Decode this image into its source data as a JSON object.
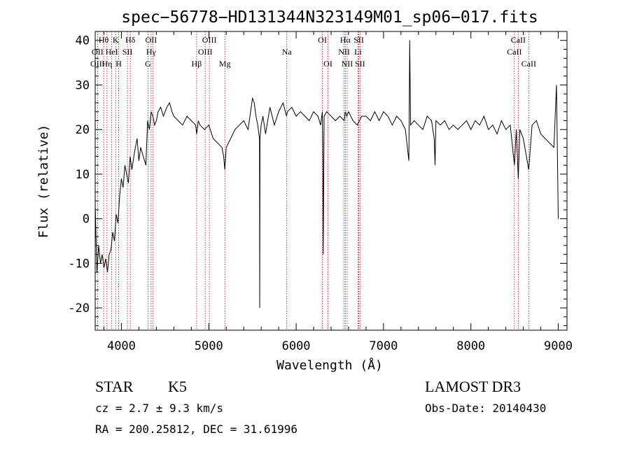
{
  "chart_data": {
    "type": "line",
    "title": "spec−56778−HD131344N323149M01_sp06−017.fits",
    "xlabel": "Wavelength (Å)",
    "ylabel": "Flux (relative)",
    "xlim": [
      3700,
      9100
    ],
    "ylim": [
      -25,
      42
    ],
    "x_ticks": [
      4000,
      5000,
      6000,
      7000,
      8000,
      9000
    ],
    "y_ticks": [
      -20,
      -10,
      0,
      10,
      20,
      30,
      40
    ],
    "grid": false,
    "legend": "none",
    "series": [
      {
        "x": [
          3700,
          3720,
          3740,
          3760,
          3780,
          3800,
          3820,
          3840,
          3860,
          3880,
          3900,
          3920,
          3940,
          3960,
          3980,
          4000,
          4020,
          4040,
          4060,
          4080,
          4100,
          4120,
          4150,
          4180,
          4200,
          4220,
          4250,
          4280,
          4300,
          4320,
          4340,
          4360,
          4380,
          4400,
          4420,
          4450,
          4480,
          4500,
          4520,
          4550,
          4580,
          4600,
          4650,
          4700,
          4750,
          4800,
          4850,
          4861,
          4880,
          4900,
          4950,
          5000,
          5050,
          5100,
          5150,
          5170,
          5184,
          5200,
          5250,
          5300,
          5350,
          5400,
          5450,
          5500,
          5520,
          5540,
          5560,
          5580,
          5583,
          5586,
          5600,
          5620,
          5650,
          5700,
          5750,
          5800,
          5850,
          5890,
          5900,
          5950,
          6000,
          6050,
          6100,
          6150,
          6200,
          6250,
          6280,
          6300,
          6305,
          6310,
          6320,
          6350,
          6400,
          6450,
          6500,
          6550,
          6563,
          6580,
          6600,
          6650,
          6700,
          6750,
          6800,
          6850,
          6900,
          6950,
          7000,
          7050,
          7100,
          7150,
          7200,
          7250,
          7290,
          7300,
          7310,
          7350,
          7400,
          7450,
          7500,
          7550,
          7580,
          7590,
          7600,
          7650,
          7700,
          7750,
          7800,
          7850,
          7900,
          7950,
          8000,
          8050,
          8100,
          8150,
          8200,
          8250,
          8300,
          8350,
          8400,
          8450,
          8498,
          8520,
          8542,
          8560,
          8600,
          8662,
          8700,
          8750,
          8800,
          8850,
          8900,
          8950,
          8980,
          9000
        ],
        "y": [
          3,
          -12,
          -6,
          -10,
          -8,
          -11,
          -9,
          -12,
          -8,
          -7,
          -3,
          -5,
          1,
          -1,
          5,
          9,
          7,
          12,
          10,
          8,
          14,
          11,
          15,
          18,
          13,
          16,
          14,
          12,
          22,
          20,
          24,
          23,
          21,
          22,
          24,
          25,
          23,
          24,
          25,
          26,
          24,
          23,
          22,
          21,
          23,
          22,
          21,
          19,
          22,
          21,
          20,
          21,
          18,
          17,
          16,
          14,
          11,
          16,
          18,
          20,
          21,
          22,
          20,
          27,
          26,
          23,
          21,
          18,
          -20,
          18,
          21,
          23,
          19,
          25,
          21,
          24,
          26,
          23,
          24,
          25,
          23,
          24,
          23,
          22,
          24,
          23,
          21,
          24,
          15,
          -8,
          23,
          24,
          23,
          22,
          23,
          22,
          24,
          23,
          24,
          22,
          21,
          23,
          23,
          22,
          24,
          22,
          24,
          23,
          21,
          23,
          22,
          20,
          13,
          40,
          21,
          22,
          21,
          20,
          23,
          22,
          18,
          12,
          22,
          21,
          22,
          20,
          21,
          20,
          21,
          22,
          20,
          22,
          21,
          23,
          20,
          21,
          19,
          22,
          20,
          21,
          12,
          20,
          9,
          20,
          18,
          11,
          21,
          22,
          19,
          18,
          17,
          16,
          30,
          0
        ]
      }
    ],
    "line_labels": [
      {
        "text": "Hθ",
        "x": 3797,
        "row": 1
      },
      {
        "text": "K",
        "x": 3934,
        "row": 1
      },
      {
        "text": "Hδ",
        "x": 4102,
        "row": 1
      },
      {
        "text": "OII",
        "x": 4340,
        "row": 1
      },
      {
        "text": "OIII",
        "x": 5007,
        "row": 1
      },
      {
        "text": "OI",
        "x": 6300,
        "row": 1
      },
      {
        "text": "Hα",
        "x": 6563,
        "row": 1
      },
      {
        "text": "SII",
        "x": 6717,
        "row": 1
      },
      {
        "text": "CaII",
        "x": 8542,
        "row": 1
      },
      {
        "text": "OII",
        "x": 3727,
        "row": 2
      },
      {
        "text": "HeI",
        "x": 3889,
        "row": 2
      },
      {
        "text": "SII",
        "x": 4069,
        "row": 2
      },
      {
        "text": "Hγ",
        "x": 4340,
        "row": 2
      },
      {
        "text": "OIII",
        "x": 4959,
        "row": 2
      },
      {
        "text": "Na",
        "x": 5893,
        "row": 2
      },
      {
        "text": "NII",
        "x": 6549,
        "row": 2
      },
      {
        "text": "Li",
        "x": 6708,
        "row": 2
      },
      {
        "text": "CaII",
        "x": 8498,
        "row": 2
      },
      {
        "text": "OIII",
        "x": 3727,
        "row": 3
      },
      {
        "text": "Hη",
        "x": 3835,
        "row": 3
      },
      {
        "text": "H",
        "x": 3969,
        "row": 3
      },
      {
        "text": "G",
        "x": 4304,
        "row": 3
      },
      {
        "text": "Hβ",
        "x": 4861,
        "row": 3
      },
      {
        "text": "Mg",
        "x": 5184,
        "row": 3
      },
      {
        "text": "OI",
        "x": 6364,
        "row": 3
      },
      {
        "text": "NII",
        "x": 6584,
        "row": 3
      },
      {
        "text": "SII",
        "x": 6731,
        "row": 3
      },
      {
        "text": "CaII",
        "x": 8662,
        "row": 3
      }
    ],
    "line_markers": [
      3727,
      3797,
      3835,
      3889,
      3934,
      3969,
      4069,
      4102,
      4304,
      4340,
      4363,
      4861,
      4959,
      5007,
      5184,
      5893,
      6300,
      6364,
      6549,
      6563,
      6584,
      6708,
      6717,
      6731,
      8498,
      8542,
      8662
    ],
    "colors": {
      "spectrum": "#000000",
      "markers": "#cc0000",
      "axes": "#000000"
    }
  },
  "info": {
    "class_label": "STAR",
    "subclass": "K5",
    "cz": "cz = 2.7 ± 9.3 km/s",
    "coords": "RA = 200.25812, DEC =  31.61996",
    "survey": "LAMOST DR3",
    "obs_date": "Obs-Date: 20140430"
  }
}
